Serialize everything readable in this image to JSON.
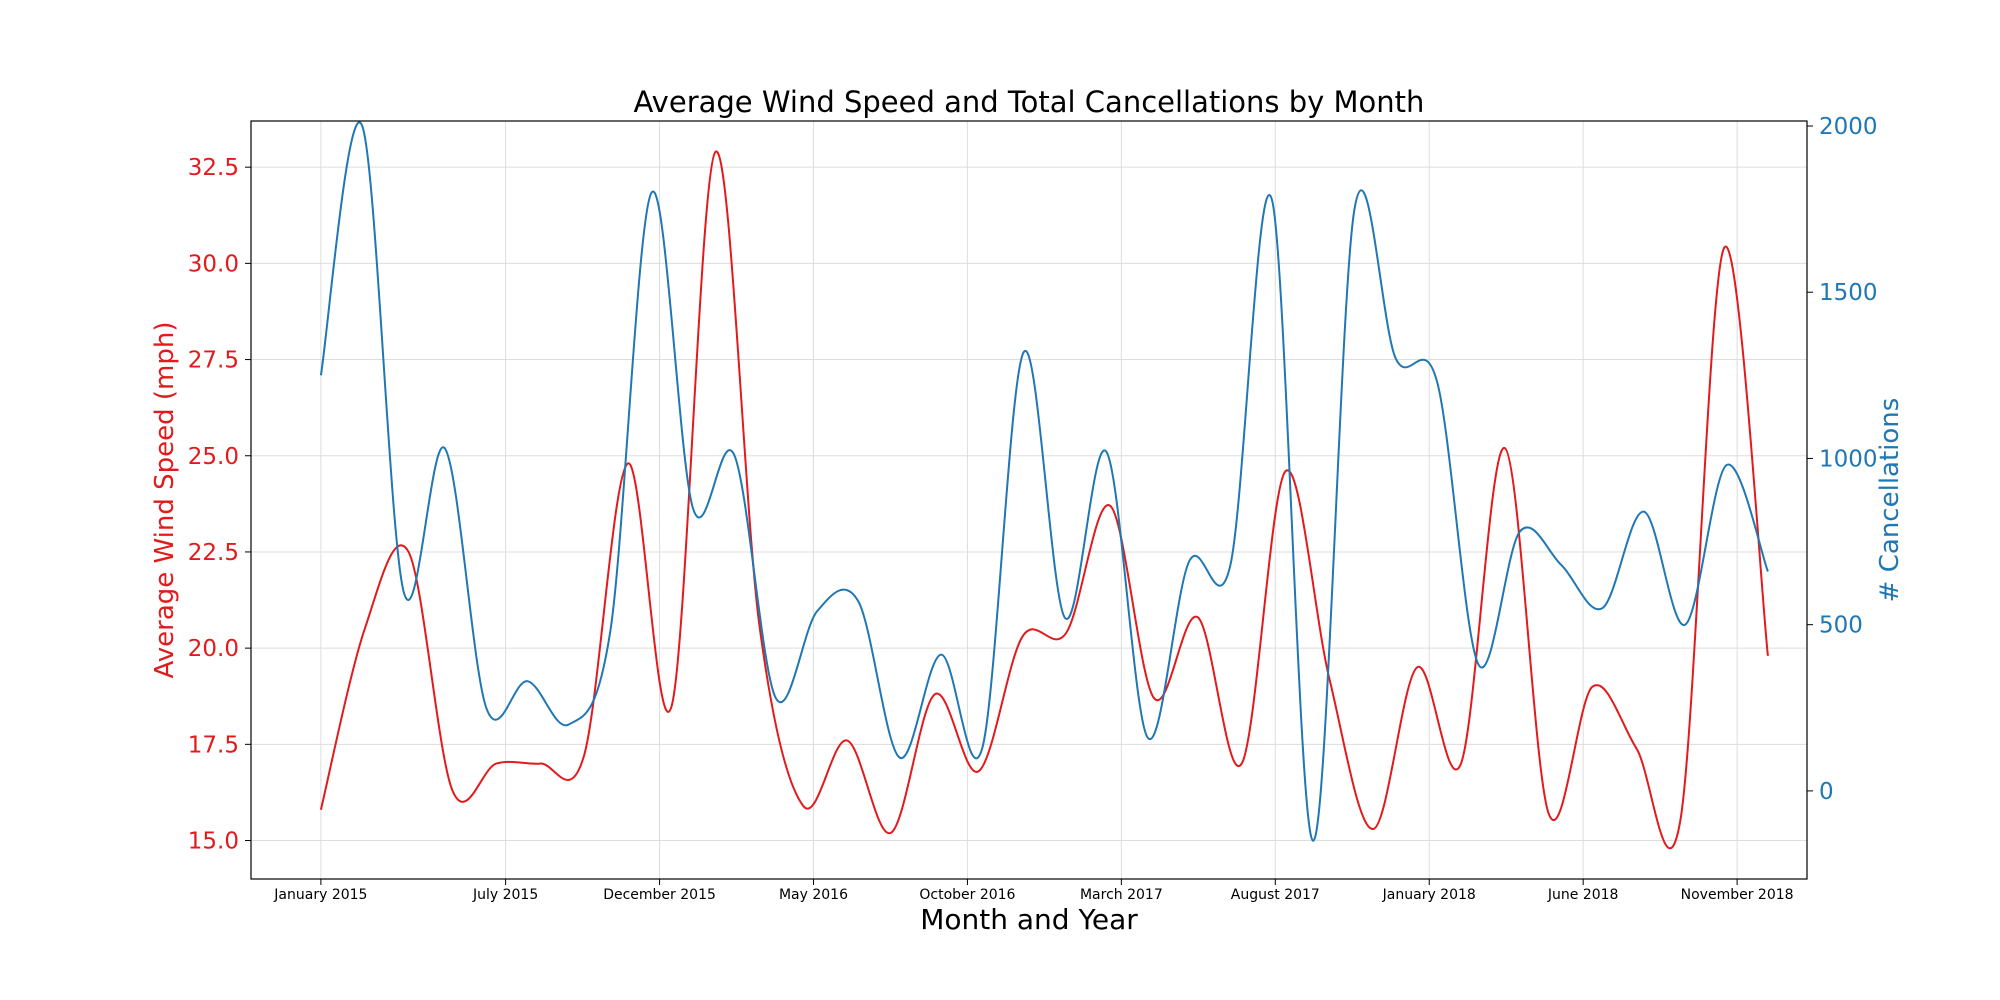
{
  "chart_data": {
    "type": "line",
    "title": "Average Wind Speed and Total Cancellations by Month",
    "xlabel": "Month and Year",
    "x_start": "January 2015",
    "x_end": "December 2018",
    "x_ticks": [
      {
        "label": "January 2015",
        "month": 0
      },
      {
        "label": "July 2015",
        "month": 6
      },
      {
        "label": "December 2015",
        "month": 11
      },
      {
        "label": "May 2016",
        "month": 16
      },
      {
        "label": "October 2016",
        "month": 21
      },
      {
        "label": "March 2017",
        "month": 26
      },
      {
        "label": "August 2017",
        "month": 31
      },
      {
        "label": "January 2018",
        "month": 36
      },
      {
        "label": "June 2018",
        "month": 41
      },
      {
        "label": "November 2018",
        "month": 46
      }
    ],
    "x_range": [
      -2.27,
      48.27
    ],
    "grid": true,
    "series": [
      {
        "name": "Average Wind Speed (mph)",
        "axis": "left",
        "ylabel": "Average Wind Speed (mph)",
        "color": "#e31a1c",
        "ylim": [
          14.0,
          33.7
        ],
        "yticks": [
          15.0,
          17.5,
          20.0,
          22.5,
          25.0,
          27.5,
          30.0,
          32.5
        ],
        "ytick_labels": [
          "15.0",
          "17.5",
          "20.0",
          "22.5",
          "25.0",
          "27.5",
          "30.0",
          "32.5"
        ],
        "values": [
          15.8,
          20.5,
          22.5,
          16.3,
          17.0,
          17.0,
          17.2,
          24.8,
          18.5,
          32.9,
          20.6,
          15.9,
          17.6,
          15.2,
          18.8,
          16.8,
          20.3,
          20.4,
          23.7,
          18.7,
          20.8,
          17.0,
          24.6,
          19.2,
          15.3,
          19.5,
          17.0,
          25.2,
          15.7,
          19.0,
          17.4,
          15.5,
          30.4,
          19.8
        ]
      },
      {
        "name": "# Cancellations",
        "axis": "right",
        "ylabel": "# Cancellations",
        "color": "#1f77b4",
        "ylim": [
          -265,
          2015
        ],
        "yticks": [
          0,
          500,
          1000,
          1500,
          2000
        ],
        "ytick_labels": [
          "0",
          "500",
          "1000",
          "1500",
          "2000"
        ],
        "values": [
          1250,
          2000,
          600,
          1030,
          250,
          330,
          200,
          480,
          1800,
          850,
          1010,
          280,
          540,
          570,
          100,
          410,
          130,
          1320,
          520,
          1020,
          160,
          690,
          680,
          1780,
          -150,
          1750,
          1300,
          1230,
          380,
          780,
          680,
          550,
          840,
          500,
          980,
          660
        ]
      }
    ]
  }
}
